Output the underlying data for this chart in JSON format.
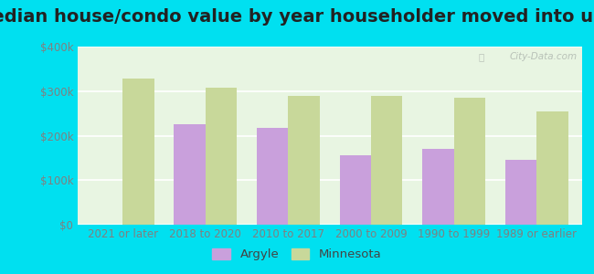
{
  "title": "Median house/condo value by year householder moved into unit",
  "categories": [
    "2021 or later",
    "2018 to 2020",
    "2010 to 2017",
    "2000 to 2009",
    "1990 to 1999",
    "1989 or earlier"
  ],
  "argyle_values": [
    null,
    225000,
    218000,
    155000,
    170000,
    145000
  ],
  "minnesota_values": [
    328000,
    308000,
    290000,
    290000,
    285000,
    255000
  ],
  "argyle_color": "#c9a0dc",
  "minnesota_color": "#c8d89a",
  "background_outer": "#00e0f0",
  "background_plot": "#e8f5e2",
  "tick_color": "#808080",
  "title_fontsize": 14,
  "tick_fontsize": 8.5,
  "legend_fontsize": 9.5,
  "ylim": [
    0,
    400000
  ],
  "yticks": [
    0,
    100000,
    200000,
    300000,
    400000
  ],
  "ytick_labels": [
    "$0",
    "$100k",
    "$200k",
    "$300k",
    "$400k"
  ],
  "bar_width": 0.38,
  "watermark": "City-Data.com"
}
